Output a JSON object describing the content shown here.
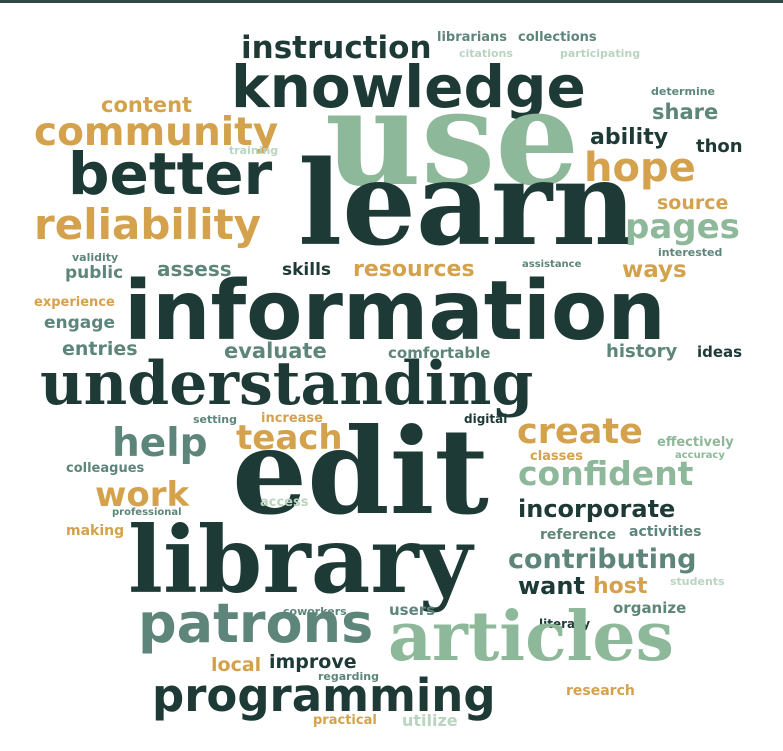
{
  "palette": {
    "dark": "#1e3a36",
    "green": "#8db899",
    "teal": "#5d857a",
    "gold": "#d4a24c",
    "light": "#b9d4bf"
  },
  "words": [
    {
      "text": "instruction",
      "color": "dark"
    },
    {
      "text": "librarians",
      "color": "teal"
    },
    {
      "text": "collections",
      "color": "teal"
    },
    {
      "text": "citations",
      "color": "light"
    },
    {
      "text": "participating",
      "color": "light"
    },
    {
      "text": "knowledge",
      "color": "dark"
    },
    {
      "text": "use",
      "color": "green"
    },
    {
      "text": "determine",
      "color": "teal"
    },
    {
      "text": "content",
      "color": "gold"
    },
    {
      "text": "share",
      "color": "teal"
    },
    {
      "text": "community",
      "color": "gold"
    },
    {
      "text": "ability",
      "color": "dark"
    },
    {
      "text": "thon",
      "color": "dark"
    },
    {
      "text": "training",
      "color": "light"
    },
    {
      "text": "better",
      "color": "dark"
    },
    {
      "text": "hope",
      "color": "gold"
    },
    {
      "text": "learn",
      "color": "dark"
    },
    {
      "text": "source",
      "color": "gold"
    },
    {
      "text": "reliability",
      "color": "gold"
    },
    {
      "text": "pages",
      "color": "green"
    },
    {
      "text": "validity",
      "color": "teal"
    },
    {
      "text": "interested",
      "color": "teal"
    },
    {
      "text": "public",
      "color": "teal"
    },
    {
      "text": "assess",
      "color": "teal"
    },
    {
      "text": "skills",
      "color": "dark"
    },
    {
      "text": "resources",
      "color": "gold"
    },
    {
      "text": "assistance",
      "color": "teal"
    },
    {
      "text": "ways",
      "color": "gold"
    },
    {
      "text": "experience",
      "color": "gold"
    },
    {
      "text": "information",
      "color": "dark"
    },
    {
      "text": "engage",
      "color": "teal"
    },
    {
      "text": "entries",
      "color": "teal"
    },
    {
      "text": "evaluate",
      "color": "teal"
    },
    {
      "text": "comfortable",
      "color": "teal"
    },
    {
      "text": "history",
      "color": "teal"
    },
    {
      "text": "ideas",
      "color": "dark"
    },
    {
      "text": "understanding",
      "color": "dark"
    },
    {
      "text": "setting",
      "color": "teal"
    },
    {
      "text": "increase",
      "color": "gold"
    },
    {
      "text": "digital",
      "color": "dark"
    },
    {
      "text": "help",
      "color": "teal"
    },
    {
      "text": "teach",
      "color": "gold"
    },
    {
      "text": "create",
      "color": "gold"
    },
    {
      "text": "effectively",
      "color": "green"
    },
    {
      "text": "accuracy",
      "color": "green"
    },
    {
      "text": "colleagues",
      "color": "teal"
    },
    {
      "text": "classes",
      "color": "gold"
    },
    {
      "text": "confident",
      "color": "green"
    },
    {
      "text": "edit",
      "color": "dark"
    },
    {
      "text": "work",
      "color": "gold"
    },
    {
      "text": "access",
      "color": "light"
    },
    {
      "text": "incorporate",
      "color": "dark"
    },
    {
      "text": "professional",
      "color": "teal"
    },
    {
      "text": "making",
      "color": "gold"
    },
    {
      "text": "reference",
      "color": "teal"
    },
    {
      "text": "activities",
      "color": "teal"
    },
    {
      "text": "library",
      "color": "dark"
    },
    {
      "text": "contributing",
      "color": "teal"
    },
    {
      "text": "want",
      "color": "dark"
    },
    {
      "text": "host",
      "color": "gold"
    },
    {
      "text": "students",
      "color": "light"
    },
    {
      "text": "coworkers",
      "color": "teal"
    },
    {
      "text": "users",
      "color": "teal"
    },
    {
      "text": "organize",
      "color": "teal"
    },
    {
      "text": "literacy",
      "color": "dark"
    },
    {
      "text": "patrons",
      "color": "teal"
    },
    {
      "text": "articles",
      "color": "green"
    },
    {
      "text": "local",
      "color": "gold"
    },
    {
      "text": "improve",
      "color": "dark"
    },
    {
      "text": "regarding",
      "color": "teal"
    },
    {
      "text": "research",
      "color": "gold"
    },
    {
      "text": "programming",
      "color": "dark"
    },
    {
      "text": "practical",
      "color": "gold"
    },
    {
      "text": "utilize",
      "color": "light"
    }
  ]
}
